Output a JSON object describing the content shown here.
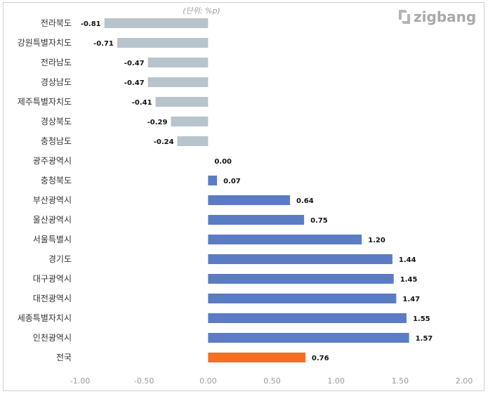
{
  "chart_data": {
    "type": "bar",
    "orientation": "horizontal",
    "unit_label": "(단위: %p)",
    "brand": "zigbang",
    "categories": [
      "전라북도",
      "강원특별자치도",
      "전라남도",
      "경상남도",
      "제주특별자치도",
      "경상북도",
      "충청남도",
      "광주광역시",
      "충청북도",
      "부산광역시",
      "울산광역시",
      "서울특별시",
      "경기도",
      "대구광역시",
      "대전광역시",
      "세종특별자치시",
      "인천광역시",
      "전국"
    ],
    "values": [
      -0.81,
      -0.71,
      -0.47,
      -0.47,
      -0.41,
      -0.29,
      -0.24,
      0.0,
      0.07,
      0.64,
      0.75,
      1.2,
      1.44,
      1.45,
      1.47,
      1.55,
      1.57,
      0.76
    ],
    "value_labels": [
      "-0.81",
      "-0.71",
      "-0.47",
      "-0.47",
      "-0.41",
      "-0.29",
      "-0.24",
      "0.00",
      "0.07",
      "0.64",
      "0.75",
      "1.20",
      "1.44",
      "1.45",
      "1.47",
      "1.55",
      "1.57",
      "0.76"
    ],
    "xlim": [
      -1.0,
      2.0
    ],
    "x_ticks": [
      -1.0,
      -0.5,
      0.0,
      0.5,
      1.0,
      1.5,
      2.0
    ],
    "x_tick_labels": [
      "-1.00",
      "-0.50",
      "0.00",
      "0.50",
      "1.00",
      "1.50",
      "2.00"
    ],
    "colors": {
      "negative": "#b8c4cc",
      "positive": "#5b7cc4",
      "total": "#f46f22"
    },
    "grid": false
  }
}
